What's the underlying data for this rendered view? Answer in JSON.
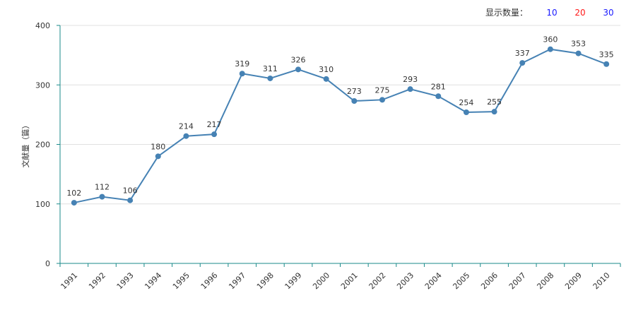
{
  "display_count": {
    "label": "显示数量：",
    "options": [
      {
        "text": "10",
        "color": "#1a1aff"
      },
      {
        "text": "20",
        "color": "#ff1a1a"
      },
      {
        "text": "30",
        "color": "#1a1aff"
      }
    ]
  },
  "colors": {
    "line": "#4682b4",
    "axis": "#1a8a8a",
    "grid": "#e0e0e0"
  },
  "chart_data": {
    "type": "line",
    "title": "",
    "xlabel": "",
    "ylabel": "文献量（篇）",
    "ylim": [
      0,
      400
    ],
    "yticks": [
      0,
      100,
      200,
      300,
      400
    ],
    "grid": true,
    "legend": "none",
    "categories": [
      "1991",
      "1992",
      "1993",
      "1994",
      "1995",
      "1996",
      "1997",
      "1998",
      "1999",
      "2000",
      "2001",
      "2002",
      "2003",
      "2004",
      "2005",
      "2006",
      "2007",
      "2008",
      "2009",
      "2010"
    ],
    "series": [
      {
        "values": [
          102,
          112,
          106,
          180,
          214,
          217,
          319,
          311,
          326,
          310,
          273,
          275,
          293,
          281,
          254,
          255,
          337,
          360,
          353,
          335
        ]
      }
    ]
  }
}
